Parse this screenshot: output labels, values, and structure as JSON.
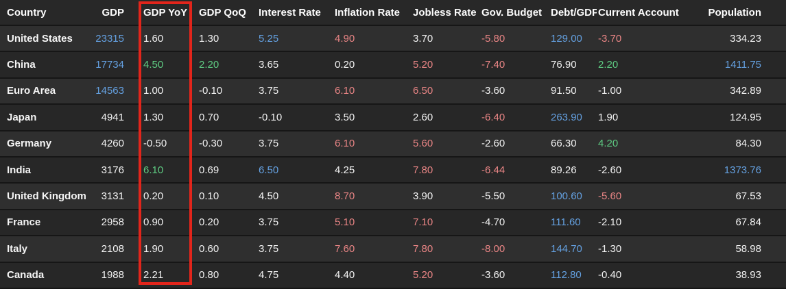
{
  "palette": {
    "row_bg_odd": "#2f2f2f",
    "row_bg_even": "#272727",
    "header_bg": "#282828",
    "separator": "#161616",
    "value_white": "#f2f2f2",
    "value_blue": "#64a0e0",
    "value_green": "#5ecb82",
    "value_red": "#e98585",
    "highlight_red": "#e2251b"
  },
  "highlight": {
    "shape": "rectangle",
    "target_column": "GDP YoY",
    "color": "#e2251b"
  },
  "table": {
    "columns": [
      {
        "label": "Country"
      },
      {
        "label": "GDP"
      },
      {
        "label": "GDP YoY"
      },
      {
        "label": "GDP QoQ"
      },
      {
        "label": "Interest Rate"
      },
      {
        "label": "Inflation Rate"
      },
      {
        "label": "Jobless Rate"
      },
      {
        "label": "Gov. Budget"
      },
      {
        "label": "Debt/GDP"
      },
      {
        "label": "Current Account"
      },
      {
        "label": "Population"
      }
    ],
    "rows": [
      {
        "country": "United States",
        "cells": [
          {
            "text": "23315",
            "color": "blue"
          },
          {
            "text": "1.60",
            "color": "white"
          },
          {
            "text": "1.30",
            "color": "white"
          },
          {
            "text": "5.25",
            "color": "blue"
          },
          {
            "text": "4.90",
            "color": "red"
          },
          {
            "text": "3.70",
            "color": "white"
          },
          {
            "text": "-5.80",
            "color": "red"
          },
          {
            "text": "129.00",
            "color": "blue"
          },
          {
            "text": "-3.70",
            "color": "red"
          },
          {
            "text": "334.23",
            "color": "white"
          }
        ]
      },
      {
        "country": "China",
        "cells": [
          {
            "text": "17734",
            "color": "blue"
          },
          {
            "text": "4.50",
            "color": "green"
          },
          {
            "text": "2.20",
            "color": "green"
          },
          {
            "text": "3.65",
            "color": "white"
          },
          {
            "text": "0.20",
            "color": "white"
          },
          {
            "text": "5.20",
            "color": "red"
          },
          {
            "text": "-7.40",
            "color": "red"
          },
          {
            "text": "76.90",
            "color": "white"
          },
          {
            "text": "2.20",
            "color": "green"
          },
          {
            "text": "1411.75",
            "color": "blue"
          }
        ]
      },
      {
        "country": "Euro Area",
        "cells": [
          {
            "text": "14563",
            "color": "blue"
          },
          {
            "text": "1.00",
            "color": "white"
          },
          {
            "text": "-0.10",
            "color": "white"
          },
          {
            "text": "3.75",
            "color": "white"
          },
          {
            "text": "6.10",
            "color": "red"
          },
          {
            "text": "6.50",
            "color": "red"
          },
          {
            "text": "-3.60",
            "color": "white"
          },
          {
            "text": "91.50",
            "color": "white"
          },
          {
            "text": "-1.00",
            "color": "white"
          },
          {
            "text": "342.89",
            "color": "white"
          }
        ]
      },
      {
        "country": "Japan",
        "cells": [
          {
            "text": "4941",
            "color": "white"
          },
          {
            "text": "1.30",
            "color": "white"
          },
          {
            "text": "0.70",
            "color": "white"
          },
          {
            "text": "-0.10",
            "color": "white"
          },
          {
            "text": "3.50",
            "color": "white"
          },
          {
            "text": "2.60",
            "color": "white"
          },
          {
            "text": "-6.40",
            "color": "red"
          },
          {
            "text": "263.90",
            "color": "blue"
          },
          {
            "text": "1.90",
            "color": "white"
          },
          {
            "text": "124.95",
            "color": "white"
          }
        ]
      },
      {
        "country": "Germany",
        "cells": [
          {
            "text": "4260",
            "color": "white"
          },
          {
            "text": "-0.50",
            "color": "white"
          },
          {
            "text": "-0.30",
            "color": "white"
          },
          {
            "text": "3.75",
            "color": "white"
          },
          {
            "text": "6.10",
            "color": "red"
          },
          {
            "text": "5.60",
            "color": "red"
          },
          {
            "text": "-2.60",
            "color": "white"
          },
          {
            "text": "66.30",
            "color": "white"
          },
          {
            "text": "4.20",
            "color": "green"
          },
          {
            "text": "84.30",
            "color": "white"
          }
        ]
      },
      {
        "country": "India",
        "cells": [
          {
            "text": "3176",
            "color": "white"
          },
          {
            "text": "6.10",
            "color": "green"
          },
          {
            "text": "0.69",
            "color": "white"
          },
          {
            "text": "6.50",
            "color": "blue"
          },
          {
            "text": "4.25",
            "color": "white"
          },
          {
            "text": "7.80",
            "color": "red"
          },
          {
            "text": "-6.44",
            "color": "red"
          },
          {
            "text": "89.26",
            "color": "white"
          },
          {
            "text": "-2.60",
            "color": "white"
          },
          {
            "text": "1373.76",
            "color": "blue"
          }
        ]
      },
      {
        "country": "United Kingdom",
        "cells": [
          {
            "text": "3131",
            "color": "white"
          },
          {
            "text": "0.20",
            "color": "white"
          },
          {
            "text": "0.10",
            "color": "white"
          },
          {
            "text": "4.50",
            "color": "white"
          },
          {
            "text": "8.70",
            "color": "red"
          },
          {
            "text": "3.90",
            "color": "white"
          },
          {
            "text": "-5.50",
            "color": "white"
          },
          {
            "text": "100.60",
            "color": "blue"
          },
          {
            "text": "-5.60",
            "color": "red"
          },
          {
            "text": "67.53",
            "color": "white"
          }
        ]
      },
      {
        "country": "France",
        "cells": [
          {
            "text": "2958",
            "color": "white"
          },
          {
            "text": "0.90",
            "color": "white"
          },
          {
            "text": "0.20",
            "color": "white"
          },
          {
            "text": "3.75",
            "color": "white"
          },
          {
            "text": "5.10",
            "color": "red"
          },
          {
            "text": "7.10",
            "color": "red"
          },
          {
            "text": "-4.70",
            "color": "white"
          },
          {
            "text": "111.60",
            "color": "blue"
          },
          {
            "text": "-2.10",
            "color": "white"
          },
          {
            "text": "67.84",
            "color": "white"
          }
        ]
      },
      {
        "country": "Italy",
        "cells": [
          {
            "text": "2108",
            "color": "white"
          },
          {
            "text": "1.90",
            "color": "white"
          },
          {
            "text": "0.60",
            "color": "white"
          },
          {
            "text": "3.75",
            "color": "white"
          },
          {
            "text": "7.60",
            "color": "red"
          },
          {
            "text": "7.80",
            "color": "red"
          },
          {
            "text": "-8.00",
            "color": "red"
          },
          {
            "text": "144.70",
            "color": "blue"
          },
          {
            "text": "-1.30",
            "color": "white"
          },
          {
            "text": "58.98",
            "color": "white"
          }
        ]
      },
      {
        "country": "Canada",
        "cells": [
          {
            "text": "1988",
            "color": "white"
          },
          {
            "text": "2.21",
            "color": "white"
          },
          {
            "text": "0.80",
            "color": "white"
          },
          {
            "text": "4.75",
            "color": "white"
          },
          {
            "text": "4.40",
            "color": "white"
          },
          {
            "text": "5.20",
            "color": "red"
          },
          {
            "text": "-3.60",
            "color": "white"
          },
          {
            "text": "112.80",
            "color": "blue"
          },
          {
            "text": "-0.40",
            "color": "white"
          },
          {
            "text": "38.93",
            "color": "white"
          }
        ]
      }
    ]
  }
}
